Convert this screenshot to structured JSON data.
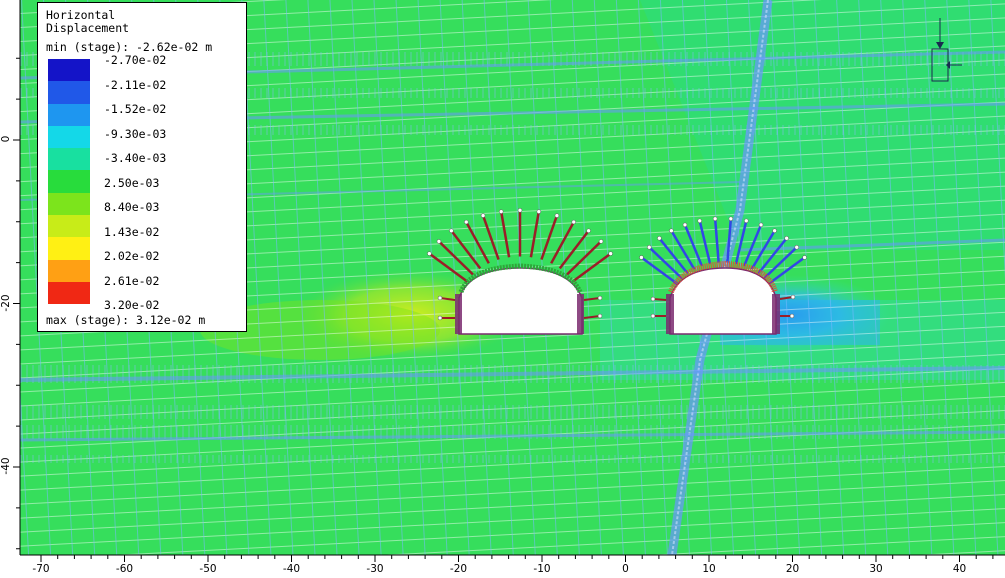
{
  "legend": {
    "title_line1": "Horizontal",
    "title_line2": "Displacement",
    "min_text": "min (stage): -2.62e-02 m",
    "max_text": "max (stage): 3.12e-02 m",
    "entries": [
      {
        "label": "-2.70e-02",
        "color": "#1414c8"
      },
      {
        "label": "-2.11e-02",
        "color": "#2058e8"
      },
      {
        "label": "-1.52e-02",
        "color": "#1e96f0"
      },
      {
        "label": "-9.30e-03",
        "color": "#14d8e8"
      },
      {
        "label": "-3.40e-03",
        "color": "#18e0a0"
      },
      {
        "label": "2.50e-03",
        "color": "#28dc3c"
      },
      {
        "label": "8.40e-03",
        "color": "#7ce41c"
      },
      {
        "label": "1.43e-02",
        "color": "#c8ec18"
      },
      {
        "label": "2.02e-02",
        "color": "#fff014"
      },
      {
        "label": "2.61e-02",
        "color": "#ffa014"
      },
      {
        "label": "3.20e-02",
        "color": "#f02814"
      }
    ]
  },
  "axes": {
    "x_ticks": [
      "-70",
      "-60",
      "-50",
      "-40",
      "-30",
      "-20",
      "-10",
      "0",
      "10",
      "20",
      "30",
      "40"
    ],
    "y_ticks": [
      "0",
      "-20",
      "-40"
    ]
  },
  "colors": {
    "background_green": "#33e05a",
    "joint_blue": "#5a8cf0",
    "excavation": "#ffffff",
    "bolt_left": "#9a1e28",
    "bolt_right": "#3246e6"
  }
}
